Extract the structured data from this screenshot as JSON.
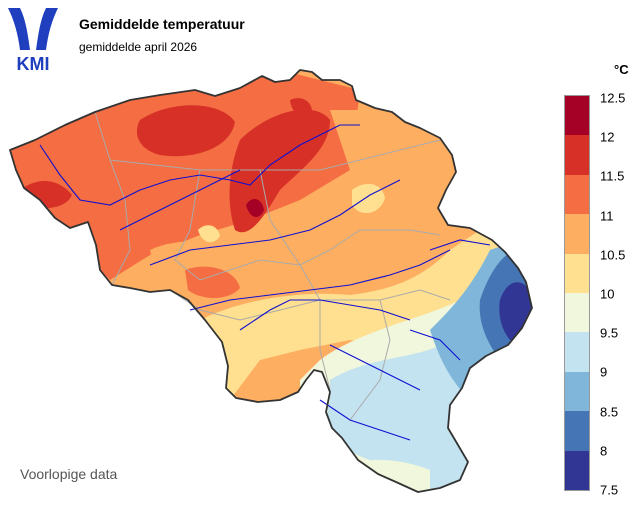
{
  "header": {
    "logo_text": "KMI",
    "title": "Gemiddelde temperatuur",
    "subtitle": "gemiddelde april 2026"
  },
  "legend": {
    "unit": "°C",
    "ticks": [
      "12.5",
      "12",
      "11.5",
      "11",
      "10.5",
      "10",
      "9.5",
      "9",
      "8.5",
      "8",
      "7.5"
    ],
    "colors": [
      "#a50026",
      "#d73027",
      "#f46d43",
      "#fdae61",
      "#fee090",
      "#f0f7dc",
      "#c3e3f0",
      "#7fb6d9",
      "#4575b4",
      "#313695"
    ]
  },
  "footer": {
    "note": "Voorlopige data"
  }
}
